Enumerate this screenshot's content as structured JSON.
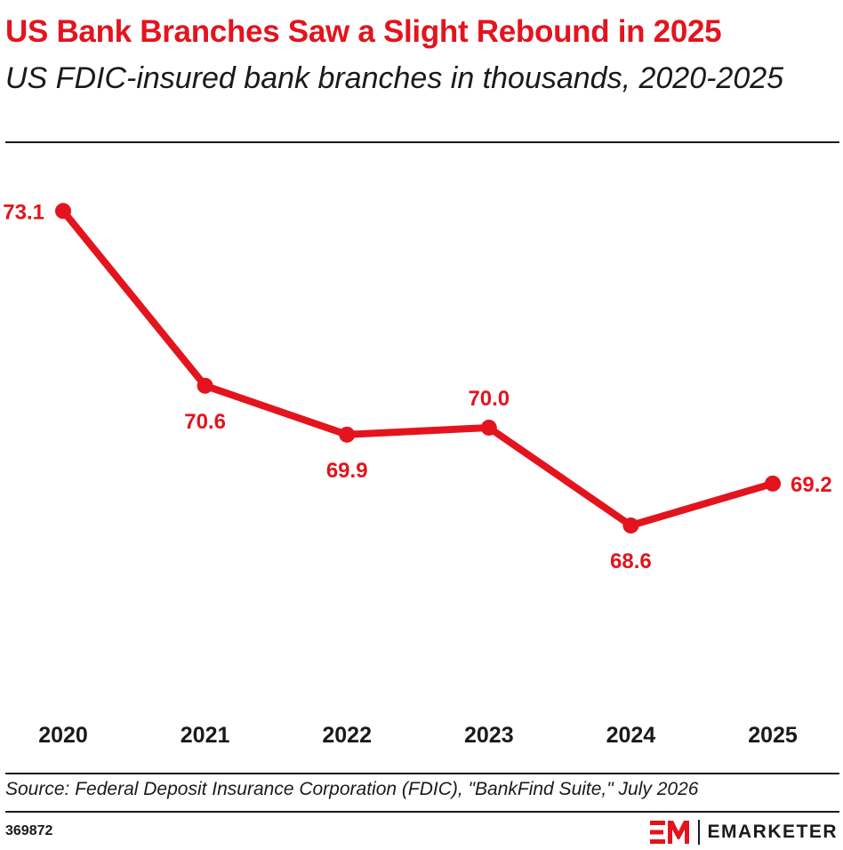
{
  "header": {
    "title": "US Bank Branches Saw a Slight Rebound in 2025",
    "subtitle": "US FDIC-insured bank branches in thousands, 2020-2025"
  },
  "chart_data": {
    "type": "line",
    "x": [
      "2020",
      "2021",
      "2022",
      "2023",
      "2024",
      "2025"
    ],
    "series": [
      {
        "values": [
          73.1,
          70.6,
          69.9,
          70.0,
          68.6,
          69.2
        ],
        "labels": [
          "73.1",
          "70.6",
          "69.9",
          "70.0",
          "68.6",
          "69.2"
        ]
      }
    ],
    "ylim": [
      65.7,
      73.6
    ],
    "grid": false,
    "color": "#e3141d"
  },
  "footer": {
    "source": "Source: Federal Deposit Insurance Corporation (FDIC), \"BankFind Suite,\" July 2026",
    "chart_id": "369872",
    "brand": "EMARKETER",
    "brand_color": "#e3141d"
  }
}
